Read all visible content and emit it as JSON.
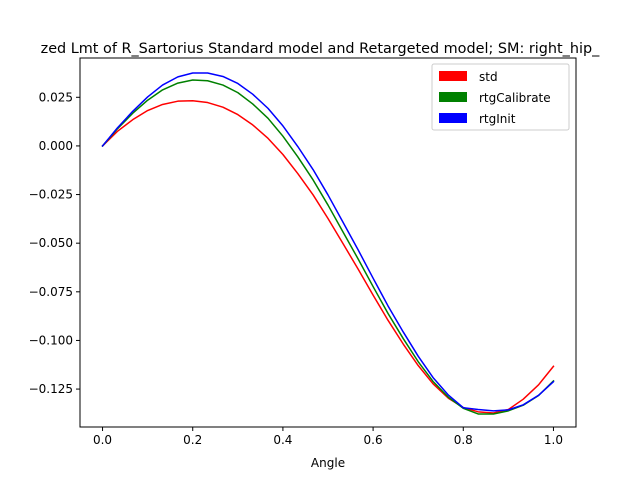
{
  "chart_data": {
    "type": "line",
    "title": "zed Lmt of R_Sartorius Standard model and Retargeted model; SM: right_hip_",
    "xlabel": "Angle",
    "ylabel": "",
    "xlim": [
      -0.05,
      1.05
    ],
    "ylim": [
      -0.1445,
      0.0452
    ],
    "xticks": [
      "0.0",
      "0.2",
      "0.4",
      "0.6",
      "0.8",
      "1.0"
    ],
    "xtick_values": [
      0.0,
      0.2,
      0.4,
      0.6,
      0.8,
      1.0
    ],
    "yticks": [
      "0.025",
      "0.000",
      "−0.025",
      "−0.050",
      "−0.075",
      "−0.100",
      "−0.125"
    ],
    "ytick_values": [
      0.025,
      0.0,
      -0.025,
      -0.05,
      -0.075,
      -0.1,
      -0.125
    ],
    "grid": false,
    "legend_position": "upper right",
    "x": [
      0.0,
      0.033,
      0.067,
      0.1,
      0.133,
      0.167,
      0.2,
      0.233,
      0.267,
      0.3,
      0.333,
      0.367,
      0.4,
      0.433,
      0.467,
      0.5,
      0.533,
      0.567,
      0.6,
      0.633,
      0.667,
      0.7,
      0.733,
      0.767,
      0.8,
      0.833,
      0.867,
      0.9,
      0.933,
      0.967,
      1.0
    ],
    "series": [
      {
        "name": "std",
        "color": "#ff0000",
        "values": [
          0.0,
          0.0075,
          0.0135,
          0.0182,
          0.0213,
          0.023,
          0.0232,
          0.0223,
          0.0199,
          0.0161,
          0.0108,
          0.0039,
          -0.0044,
          -0.0142,
          -0.0252,
          -0.0373,
          -0.0501,
          -0.0634,
          -0.0767,
          -0.0896,
          -0.1019,
          -0.1129,
          -0.1223,
          -0.1297,
          -0.1345,
          -0.1367,
          -0.1373,
          -0.1355,
          -0.1302,
          -0.1228,
          -0.1133
        ]
      },
      {
        "name": "rtgCalibrate",
        "color": "#008000",
        "values": [
          0.0,
          0.0088,
          0.0168,
          0.0235,
          0.0288,
          0.0323,
          0.0339,
          0.0335,
          0.0313,
          0.0274,
          0.0216,
          0.0142,
          0.005,
          -0.0056,
          -0.0175,
          -0.0304,
          -0.0441,
          -0.0582,
          -0.0723,
          -0.0861,
          -0.0991,
          -0.1109,
          -0.1211,
          -0.1292,
          -0.1349,
          -0.1378,
          -0.1378,
          -0.1362,
          -0.1333,
          -0.1283,
          -0.1208
        ]
      },
      {
        "name": "rtgInit",
        "color": "#0000ff",
        "values": [
          0.0,
          0.0093,
          0.0178,
          0.0252,
          0.0313,
          0.0355,
          0.0375,
          0.0375,
          0.0357,
          0.0321,
          0.0266,
          0.0193,
          0.0103,
          -0.0003,
          -0.0122,
          -0.0252,
          -0.0391,
          -0.0535,
          -0.068,
          -0.0822,
          -0.0957,
          -0.1081,
          -0.1191,
          -0.1281,
          -0.1346,
          -0.1355,
          -0.1362,
          -0.1357,
          -0.1331,
          -0.1282,
          -0.1212
        ]
      }
    ]
  }
}
